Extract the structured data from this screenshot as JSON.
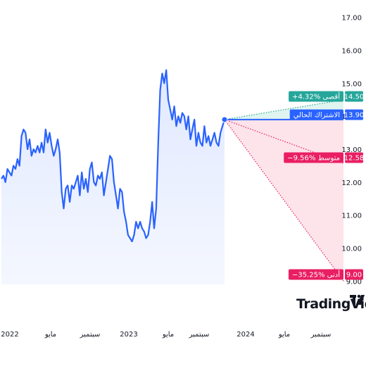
{
  "chart_data": {
    "type": "line",
    "y_ticks": [
      "17.00",
      "16.00",
      "15.00",
      "14.00",
      "13.00",
      "12.00",
      "11.00",
      "10.00",
      "9.00"
    ],
    "x_ticks": [
      "2022",
      "مايو",
      "سبتمبر",
      "2023",
      "مايو",
      "سبتمبر",
      "2024",
      "مايو",
      "سبتمبر"
    ],
    "ylim": [
      8.9,
      17.1
    ],
    "series": [
      {
        "values": [
          12.1,
          12.2,
          12.0,
          12.4,
          12.3,
          12.2,
          12.5,
          12.4,
          12.7,
          12.5,
          13.4,
          13.6,
          13.5,
          13.0,
          13.3,
          12.8,
          13.0,
          12.9,
          13.1,
          12.9,
          13.2,
          12.9,
          13.6,
          13.2,
          13.5,
          13.1,
          12.8,
          13.0,
          13.3,
          12.9,
          11.7,
          11.2,
          11.8,
          11.9,
          11.4,
          11.9,
          11.8,
          12.0,
          12.2,
          11.6,
          12.3,
          11.8,
          12.1,
          11.7,
          12.4,
          12.6,
          12.0,
          11.9,
          12.2,
          12.1,
          12.3,
          11.6,
          12.0,
          12.4,
          12.8,
          12.7,
          12.0,
          11.6,
          11.2,
          11.8,
          11.7,
          11.1,
          10.8,
          10.4,
          10.3,
          10.2,
          10.4,
          10.8,
          10.6,
          10.8,
          10.6,
          10.5,
          10.3,
          10.4,
          10.8,
          11.4,
          10.6,
          11.2,
          13.2,
          14.8,
          15.3,
          15.0,
          15.4,
          14.5,
          14.2,
          13.9,
          14.3,
          13.7,
          14.0,
          13.8,
          14.1,
          14.0,
          13.6,
          14.0,
          13.3,
          13.6,
          13.9,
          13.1,
          13.5,
          13.2,
          13.1,
          13.7,
          13.2,
          13.4,
          13.1,
          13.3,
          13.5,
          13.2,
          13.1,
          13.5,
          13.7,
          13.9
        ],
        "color": "#2962ff"
      }
    ],
    "current": {
      "label": "الاشتراك الحالي",
      "value": "13.90",
      "color": "#2962ff",
      "value_num": 13.9
    },
    "targets": [
      {
        "label": "+4.32% أقصى",
        "value": "14.50",
        "color": "#26a69a",
        "value_num": 14.5
      },
      {
        "label": "−9.56% متوسط",
        "value": "12.58",
        "color": "#e91e63",
        "value_num": 12.58
      },
      {
        "label": "−35.25% أدنى",
        "value": "9.00",
        "color": "#e91e63",
        "value_num": 9.0
      }
    ]
  },
  "branding": {
    "logo": "TradingView",
    "logo_icon": "tv-icon"
  }
}
